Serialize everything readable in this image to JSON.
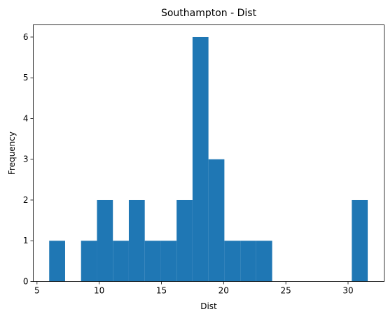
{
  "chart_data": {
    "type": "bar",
    "title": "Southampton - Dist",
    "xlabel": "Dist",
    "ylabel": "Frequency",
    "xlim": [
      4.7,
      32.9
    ],
    "ylim": [
      0,
      6.3
    ],
    "xticks": [
      5,
      10,
      15,
      20,
      25,
      30
    ],
    "yticks": [
      0,
      1,
      2,
      3,
      4,
      5,
      6
    ],
    "grid": false,
    "bar_color": "#1f77b4",
    "bins": [
      {
        "x0": 5.98,
        "x1": 7.26,
        "count": 1
      },
      {
        "x0": 7.26,
        "x1": 8.54,
        "count": 0
      },
      {
        "x0": 8.54,
        "x1": 9.82,
        "count": 1
      },
      {
        "x0": 9.82,
        "x1": 11.1,
        "count": 2
      },
      {
        "x0": 11.1,
        "x1": 12.38,
        "count": 1
      },
      {
        "x0": 12.38,
        "x1": 13.66,
        "count": 2
      },
      {
        "x0": 13.66,
        "x1": 14.94,
        "count": 1
      },
      {
        "x0": 14.94,
        "x1": 16.22,
        "count": 1
      },
      {
        "x0": 16.22,
        "x1": 17.5,
        "count": 2
      },
      {
        "x0": 17.5,
        "x1": 18.78,
        "count": 6
      },
      {
        "x0": 18.78,
        "x1": 20.06,
        "count": 3
      },
      {
        "x0": 20.06,
        "x1": 21.34,
        "count": 1
      },
      {
        "x0": 21.34,
        "x1": 22.62,
        "count": 1
      },
      {
        "x0": 22.62,
        "x1": 23.9,
        "count": 1
      },
      {
        "x0": 23.9,
        "x1": 25.18,
        "count": 0
      },
      {
        "x0": 25.18,
        "x1": 26.46,
        "count": 0
      },
      {
        "x0": 26.46,
        "x1": 27.74,
        "count": 0
      },
      {
        "x0": 27.74,
        "x1": 29.02,
        "count": 0
      },
      {
        "x0": 29.02,
        "x1": 30.3,
        "count": 0
      },
      {
        "x0": 30.3,
        "x1": 31.58,
        "count": 2
      }
    ]
  }
}
